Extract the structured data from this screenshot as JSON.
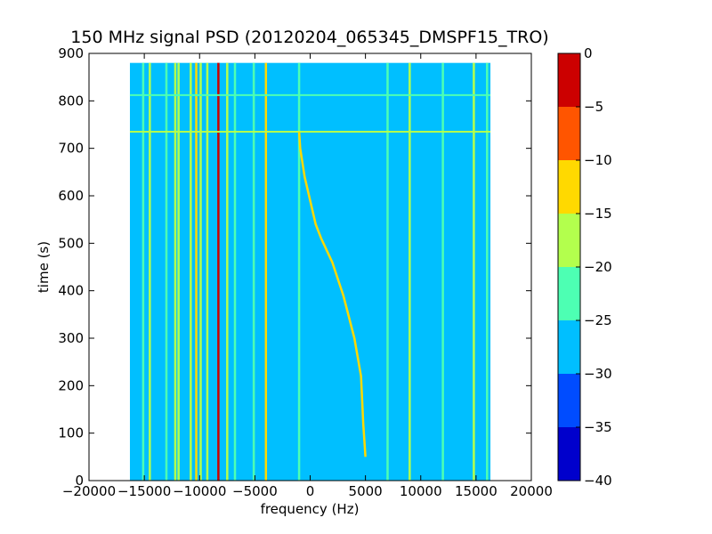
{
  "chart_data": {
    "type": "heatmap",
    "title": "150 MHz signal PSD (20120204_065345_DMSPF15_TRO)",
    "xlabel": "frequency (Hz)",
    "ylabel": "time (s)",
    "xlim": [
      -20000,
      20000
    ],
    "ylim": [
      0,
      900
    ],
    "x_extent": [
      -16300,
      16300
    ],
    "y_extent": [
      0,
      880
    ],
    "x_ticks": [
      -20000,
      -15000,
      -10000,
      -5000,
      0,
      5000,
      10000,
      15000,
      20000
    ],
    "x_tick_labels": [
      "−20000",
      "−15000",
      "−10000",
      "−5000",
      "0",
      "5000",
      "10000",
      "15000",
      "20000"
    ],
    "y_ticks": [
      0,
      100,
      200,
      300,
      400,
      500,
      600,
      700,
      800,
      900
    ],
    "y_tick_labels": [
      "0",
      "100",
      "200",
      "300",
      "400",
      "500",
      "600",
      "700",
      "800",
      "900"
    ],
    "background_level": -27.5,
    "colorbar": {
      "levels": [
        -40,
        -35,
        -30,
        -25,
        -20,
        -15,
        -10,
        -5,
        0
      ],
      "tick_labels": [
        "−40",
        "−35",
        "−30",
        "−25",
        "−20",
        "−15",
        "−10",
        "−5",
        "0"
      ],
      "colors": [
        "#0000cc",
        "#004cff",
        "#00bfff",
        "#4dffb3",
        "#b3ff4d",
        "#ffd900",
        "#ff5500",
        "#cc0000"
      ]
    },
    "vertical_lines": [
      {
        "freq": -15100,
        "level": -22.5
      },
      {
        "freq": -14500,
        "level": -17.5
      },
      {
        "freq": -13000,
        "level": -22.5
      },
      {
        "freq": -12200,
        "level": -17.5
      },
      {
        "freq": -11900,
        "level": -17.5
      },
      {
        "freq": -10800,
        "level": -17.5
      },
      {
        "freq": -10300,
        "level": -12.5
      },
      {
        "freq": -9900,
        "level": -17.5
      },
      {
        "freq": -9300,
        "level": -17.5
      },
      {
        "freq": -8300,
        "level": -2.5
      },
      {
        "freq": -7500,
        "level": -17.5
      },
      {
        "freq": -6800,
        "level": -22.5
      },
      {
        "freq": -5100,
        "level": -22.5
      },
      {
        "freq": -4000,
        "level": -12.5
      },
      {
        "freq": -1000,
        "level": -22.5
      },
      {
        "freq": 7000,
        "level": -22.5
      },
      {
        "freq": 9000,
        "level": -17.5
      },
      {
        "freq": 12000,
        "level": -22.5
      },
      {
        "freq": 14800,
        "level": -17.5
      },
      {
        "freq": 16000,
        "level": -22.5
      }
    ],
    "horizontal_lines": [
      {
        "time": 735,
        "level": -17.5
      },
      {
        "time": 812,
        "level": -22.5
      }
    ],
    "doppler_trace": {
      "level": -12.5,
      "points": [
        [
          -1000,
          735
        ],
        [
          -900,
          700
        ],
        [
          -500,
          640
        ],
        [
          0,
          590
        ],
        [
          500,
          540
        ],
        [
          1000,
          510
        ],
        [
          2000,
          460
        ],
        [
          3000,
          390
        ],
        [
          4000,
          300
        ],
        [
          4600,
          220
        ],
        [
          4800,
          120
        ],
        [
          5000,
          50
        ]
      ]
    }
  }
}
